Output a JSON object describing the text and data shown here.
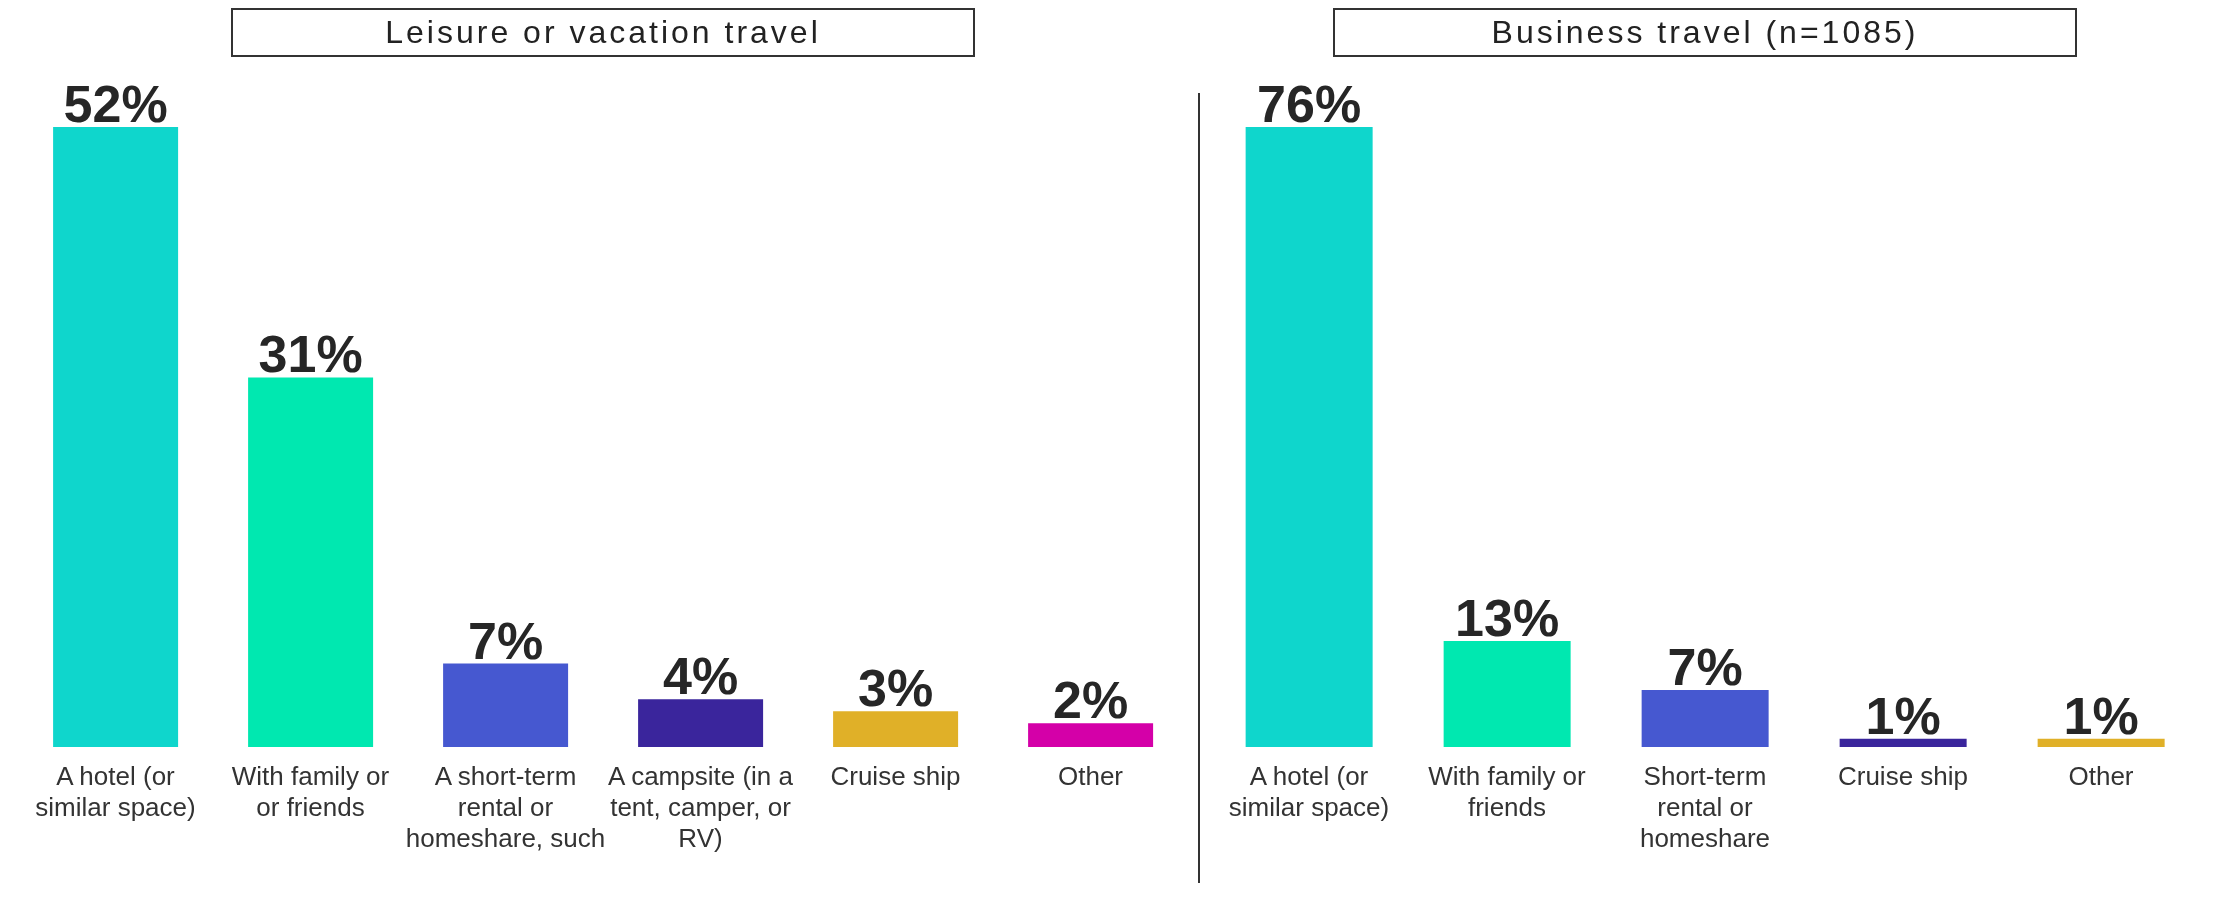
{
  "chart_data": [
    {
      "type": "bar",
      "title": "Leisure or vacation travel",
      "categories": [
        "A hotel (or similar space)",
        "With family or or friends",
        "A short-term rental or homeshare, such",
        "A campsite (in a tent, camper, or RV)",
        "Cruise ship",
        "Other"
      ],
      "values": [
        52,
        31,
        7,
        4,
        3,
        2
      ],
      "value_labels": [
        "52%",
        "31%",
        "7%",
        "4%",
        "3%",
        "2%"
      ],
      "colors": [
        "#0fd6cc",
        "#00e8b0",
        "#4658d0",
        "#3a259c",
        "#e0b028",
        "#d400a8"
      ]
    },
    {
      "type": "bar",
      "title": "Business travel (n=1085)",
      "categories": [
        "A hotel (or similar space)",
        "With family or friends",
        "Short-term rental or homeshare",
        "Cruise ship",
        "Other"
      ],
      "values": [
        76,
        13,
        7,
        1,
        1
      ],
      "value_labels": [
        "76%",
        "13%",
        "7%",
        "1%",
        "1%"
      ],
      "colors": [
        "#0fd6cc",
        "#00e8b0",
        "#4658d0",
        "#3a259c",
        "#e0b028"
      ]
    }
  ]
}
